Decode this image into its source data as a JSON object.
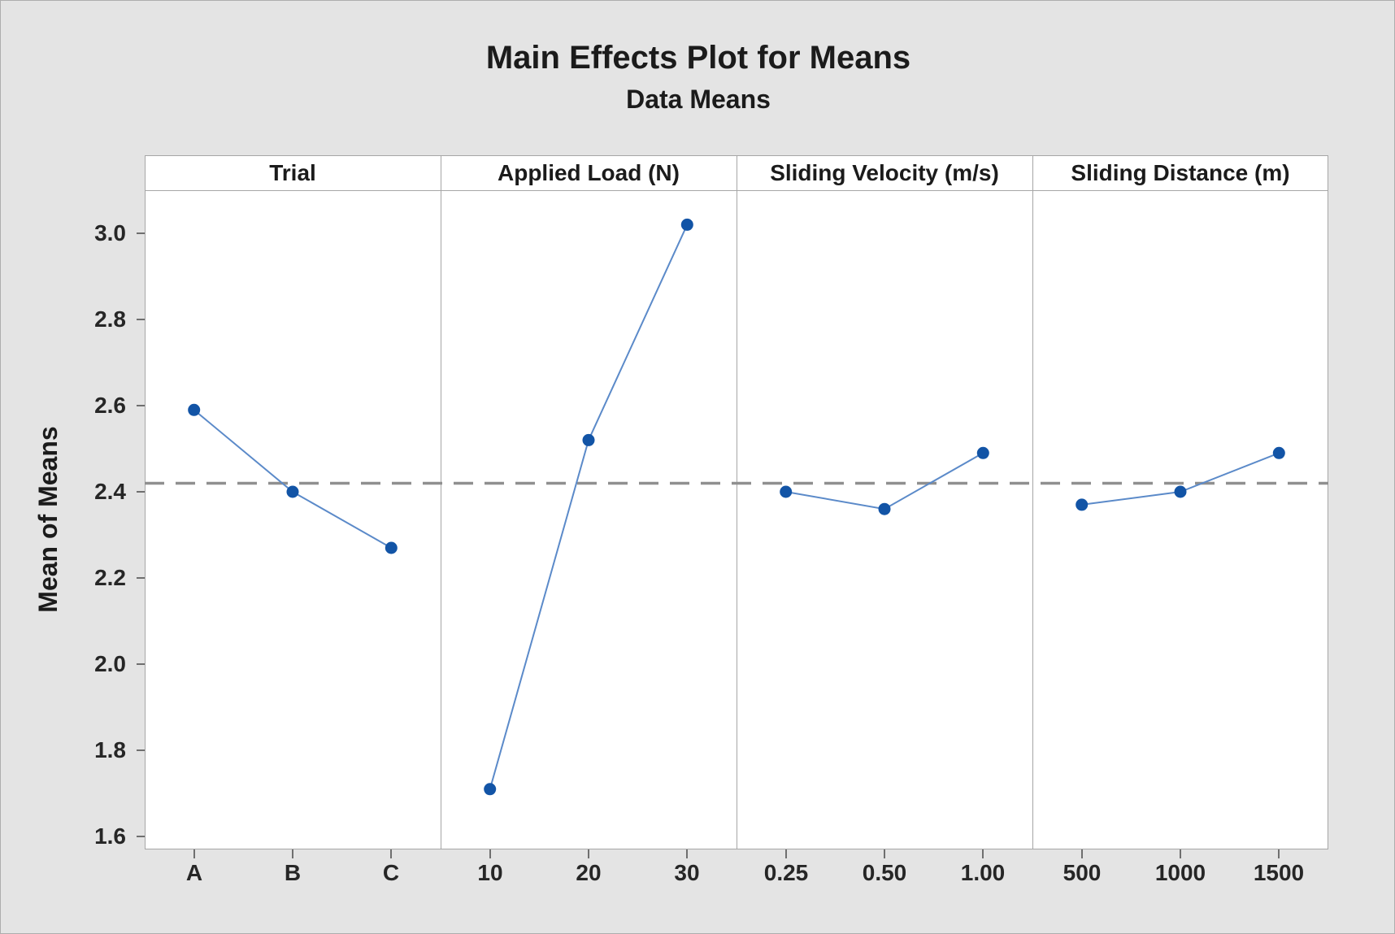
{
  "title": "Main Effects Plot for Means",
  "subtitle": "Data Means",
  "y_axis_title": "Mean of Means",
  "colors": {
    "background": "#e4e4e4",
    "panel_background": "#ffffff",
    "panel_border": "#a6a6a6",
    "marker": "#1254a6",
    "connect_line": "#5b8ac9",
    "grand_mean_line": "#8f8f8f",
    "text": "#1b1b1b",
    "tick": "#6f6f6f"
  },
  "chart_data": {
    "type": "line",
    "subtype": "main-effects-plot",
    "title": "Main Effects Plot for Means",
    "subtitle": "Data Means",
    "ylabel": "Mean of Means",
    "ylim": [
      1.57,
      3.1
    ],
    "y_ticks": [
      1.6,
      1.8,
      2.0,
      2.2,
      2.4,
      2.6,
      2.8,
      3.0
    ],
    "y_tick_labels": [
      "1.6",
      "1.8",
      "2.0",
      "2.2",
      "2.4",
      "2.6",
      "2.8",
      "3.0"
    ],
    "grand_mean": 2.42,
    "grid": false,
    "legend": "none",
    "panels": [
      {
        "label": "Trial",
        "categories": [
          "A",
          "B",
          "C"
        ],
        "values": [
          2.59,
          2.4,
          2.27
        ]
      },
      {
        "label": "Applied Load (N)",
        "categories": [
          "10",
          "20",
          "30"
        ],
        "values": [
          1.71,
          2.52,
          3.02
        ]
      },
      {
        "label": "Sliding Velocity (m/s)",
        "categories": [
          "0.25",
          "0.50",
          "1.00"
        ],
        "values": [
          2.4,
          2.36,
          2.49
        ]
      },
      {
        "label": "Sliding Distance (m)",
        "categories": [
          "500",
          "1000",
          "1500"
        ],
        "values": [
          2.37,
          2.4,
          2.49
        ]
      }
    ]
  }
}
